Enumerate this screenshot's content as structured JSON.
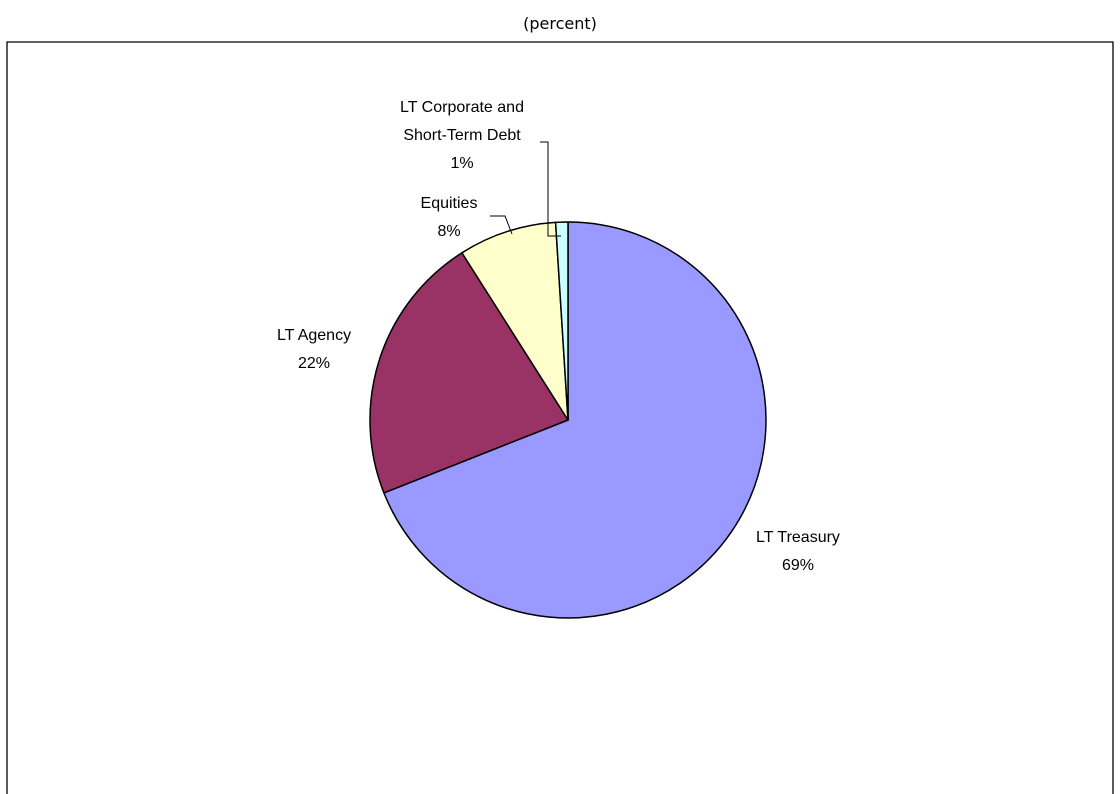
{
  "chart_data": {
    "type": "pie",
    "title": "",
    "subtitle": "(percent)",
    "slices": [
      {
        "label": "LT Treasury",
        "value": 69,
        "value_label": "69%",
        "color": "#9999ff"
      },
      {
        "label": "LT Agency",
        "value": 22,
        "value_label": "22%",
        "color": "#993366"
      },
      {
        "label": "Equities",
        "value": 8,
        "value_label": "8%",
        "color": "#ffffcc"
      },
      {
        "label_lines": [
          "LT Corporate and",
          "Short-Term Debt"
        ],
        "value": 1,
        "value_label": "1%",
        "color": "#ccffff"
      }
    ],
    "legend": "none"
  }
}
